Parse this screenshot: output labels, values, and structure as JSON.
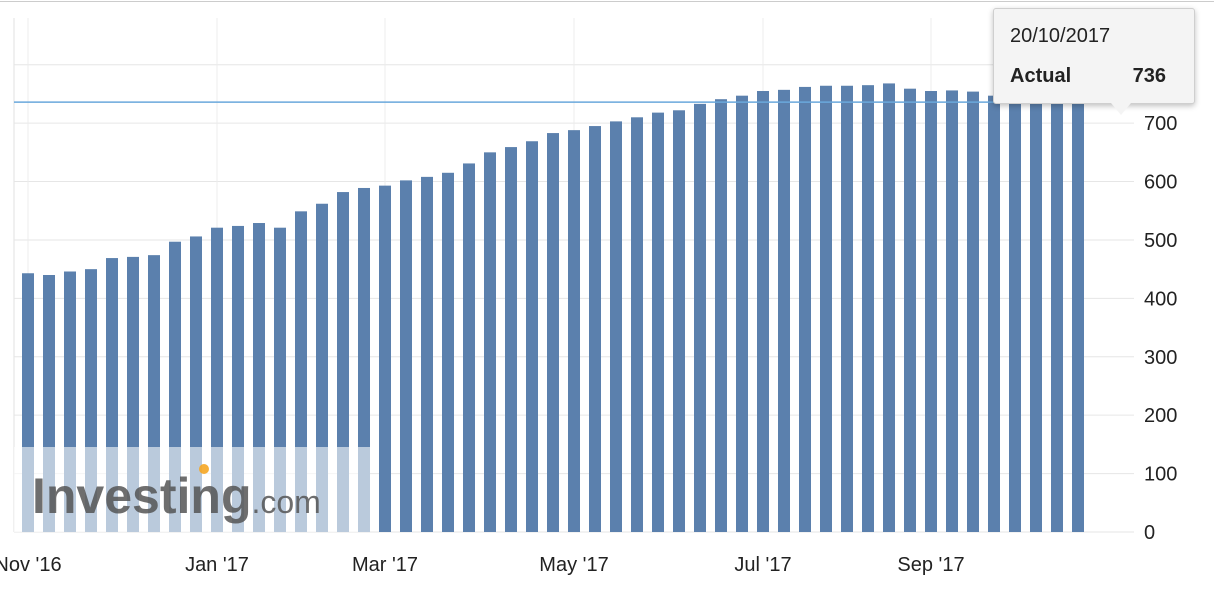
{
  "chart_data": {
    "type": "bar",
    "title": "",
    "xlabel": "",
    "ylabel": "",
    "ylim": [
      0,
      880
    ],
    "y_ticks": [
      0,
      100,
      200,
      300,
      400,
      500,
      600,
      700
    ],
    "x_tick_labels": [
      "Nov '16",
      "Jan '17",
      "Mar '17",
      "May '17",
      "Jul '17",
      "Sep '17"
    ],
    "grid": true,
    "reference_line": 736,
    "bar_color": "#5b80ad",
    "line_color": "#6aa8dc",
    "categories": [
      "04/11/2016",
      "11/11/2016",
      "18/11/2016",
      "23/11/2016",
      "02/12/2016",
      "09/12/2016",
      "16/12/2016",
      "23/12/2016",
      "30/12/2016",
      "06/01/2017",
      "13/01/2017",
      "20/01/2017",
      "27/01/2017",
      "03/02/2017",
      "10/02/2017",
      "17/02/2017",
      "24/02/2017",
      "03/03/2017",
      "10/03/2017",
      "17/03/2017",
      "24/03/2017",
      "31/03/2017",
      "07/04/2017",
      "13/04/2017",
      "21/04/2017",
      "28/04/2017",
      "05/05/2017",
      "12/05/2017",
      "19/05/2017",
      "26/05/2017",
      "02/06/2017",
      "09/06/2017",
      "16/06/2017",
      "23/06/2017",
      "30/06/2017",
      "07/07/2017",
      "14/07/2017",
      "21/07/2017",
      "28/07/2017",
      "04/08/2017",
      "11/08/2017",
      "18/08/2017",
      "25/08/2017",
      "01/09/2017",
      "08/09/2017",
      "15/09/2017",
      "22/09/2017",
      "29/09/2017",
      "06/10/2017",
      "13/10/2017",
      "20/10/2017"
    ],
    "values": [
      443,
      440,
      446,
      450,
      469,
      471,
      474,
      497,
      506,
      521,
      524,
      529,
      521,
      549,
      562,
      582,
      589,
      593,
      602,
      608,
      615,
      631,
      650,
      659,
      669,
      683,
      688,
      695,
      703,
      710,
      718,
      722,
      733,
      741,
      747,
      755,
      757,
      762,
      764,
      764,
      765,
      768,
      759,
      755,
      756,
      754,
      747,
      744,
      745,
      746,
      736
    ],
    "highlight": {
      "index": 50,
      "date": "20/10/2017",
      "series_label": "Actual",
      "value": "736"
    }
  },
  "watermark": {
    "text_main": "Investing",
    "text_suffix": ".com"
  }
}
